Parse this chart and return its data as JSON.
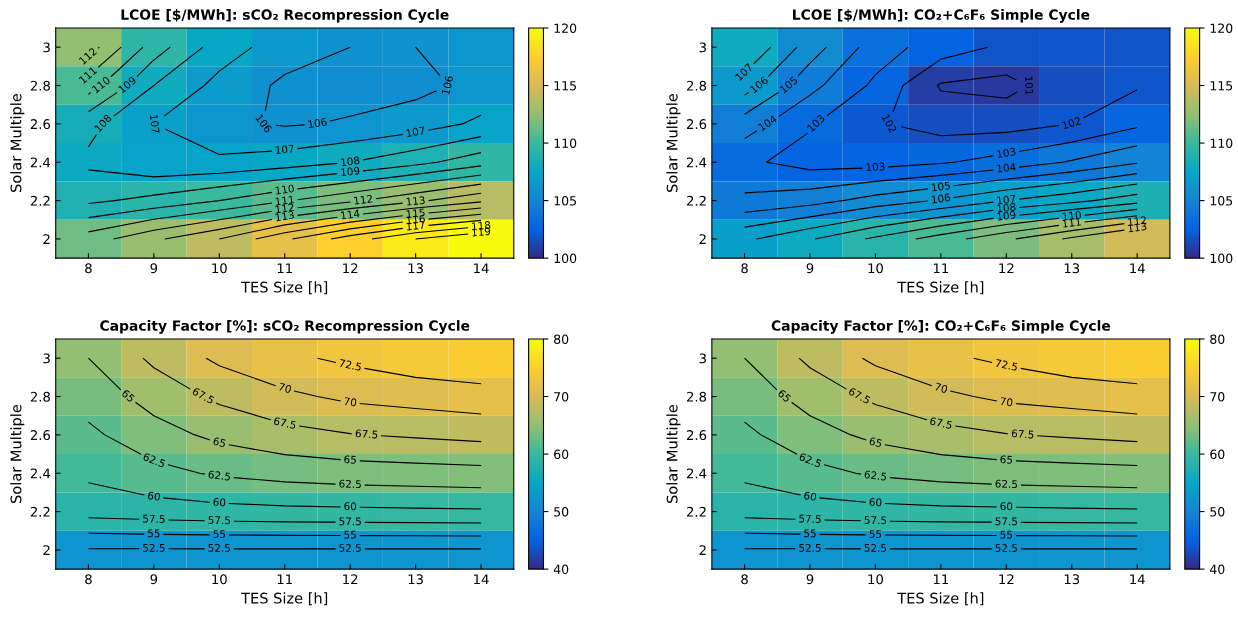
{
  "chart_data": [
    {
      "type": "heatmap",
      "title": "LCOE [$/MWh]: sCO₂ Recompression Cycle",
      "xlabel": "TES Size [h]",
      "ylabel": "Solar Multiple",
      "categories": [
        "8",
        "9",
        "10",
        "11",
        "12",
        "13",
        "14"
      ],
      "y_categories": [
        "3",
        "2.8",
        "2.6",
        "2.4",
        "2.2",
        "2"
      ],
      "clim": [
        100,
        120
      ],
      "cticks": [
        100,
        105,
        110,
        115,
        120
      ],
      "cells": [
        [
          112.5,
          109.5,
          107.5,
          106.5,
          106,
          106,
          106.2
        ],
        [
          110.5,
          108,
          106.7,
          105.8,
          105.6,
          105.7,
          106.3
        ],
        [
          108.3,
          107,
          106.2,
          105.9,
          106.1,
          106.5,
          107.2
        ],
        [
          107.8,
          107.2,
          107.2,
          107.5,
          108,
          108.7,
          109.6
        ],
        [
          108.8,
          109.3,
          110,
          110.9,
          111.8,
          112.8,
          113.8
        ],
        [
          111.5,
          112.8,
          114,
          115.8,
          117.5,
          119,
          120
        ]
      ],
      "annotations": [
        "112",
        "111",
        "110",
        "110",
        "109",
        "109",
        "108",
        "108",
        "107",
        "107",
        "107",
        "106",
        "106",
        "106",
        "111",
        "112",
        "112",
        "113",
        "113",
        "114",
        "115",
        "116",
        "117",
        "118",
        "119"
      ]
    },
    {
      "type": "heatmap",
      "title": "LCOE [$/MWh]: CO₂+C₆F₆ Simple Cycle",
      "xlabel": "TES Size [h]",
      "ylabel": "Solar Multiple",
      "categories": [
        "8",
        "9",
        "10",
        "11",
        "12",
        "13",
        "14"
      ],
      "y_categories": [
        "3",
        "2.8",
        "2.6",
        "2.4",
        "2.2",
        "2"
      ],
      "clim": [
        100,
        120
      ],
      "cticks": [
        100,
        105,
        110,
        115,
        120
      ],
      "cells": [
        [
          108,
          105.5,
          103.5,
          102.5,
          101.8,
          101.9,
          101.8
        ],
        [
          106.5,
          104.3,
          102.8,
          100.9,
          100.7,
          101.6,
          101.9
        ],
        [
          104.5,
          103.1,
          102.1,
          101.6,
          101.6,
          102,
          102.8
        ],
        [
          103.2,
          102.6,
          102.6,
          102.9,
          103.4,
          104.1,
          104.9
        ],
        [
          104.2,
          104.6,
          105.4,
          106.1,
          107,
          107.7,
          108.6
        ],
        [
          106.8,
          107.9,
          109.2,
          110.5,
          111.8,
          113.2,
          114.7
        ]
      ],
      "annotations": [
        "107",
        "106",
        "105",
        "104",
        "104",
        "103",
        "103",
        "103",
        "102",
        "102",
        "101",
        "105",
        "106",
        "107",
        "108",
        "109",
        "110",
        "111",
        "112",
        "113"
      ]
    },
    {
      "type": "heatmap",
      "title": "Capacity Factor [%]: sCO₂ Recompression Cycle",
      "xlabel": "TES Size [h]",
      "ylabel": "Solar Multiple",
      "categories": [
        "8",
        "9",
        "10",
        "11",
        "12",
        "13",
        "14"
      ],
      "y_categories": [
        "3",
        "2.8",
        "2.6",
        "2.4",
        "2.2",
        "2"
      ],
      "clim": [
        40,
        80
      ],
      "cticks": [
        40,
        50,
        60,
        70,
        80
      ],
      "cells": [
        [
          65,
          68,
          70.5,
          72,
          73,
          74,
          74.5
        ],
        [
          63.5,
          66,
          68,
          69.5,
          70.5,
          71,
          71.5
        ],
        [
          62,
          64,
          65.6,
          66.7,
          67.4,
          67.8,
          68.2
        ],
        [
          60.5,
          61.8,
          62.8,
          63.4,
          63.8,
          64,
          64.2
        ],
        [
          58.5,
          58.9,
          59.2,
          59.4,
          59.5,
          59.6,
          59.7
        ],
        [
          52.3,
          52.3,
          52.3,
          52.3,
          52.3,
          52.3,
          52.3
        ]
      ],
      "annotations": [
        "72.5",
        "70",
        "70",
        "67.5",
        "67.5",
        "67.5",
        "65",
        "65",
        "65",
        "62.5",
        "62.5",
        "62.5",
        "60",
        "60",
        "60",
        "57.5",
        "57.5",
        "57.5",
        "55",
        "55",
        "55",
        "52.5",
        "52.5",
        "52.5"
      ]
    },
    {
      "type": "heatmap",
      "title": "Capacity Factor [%]: CO₂+C₆F₆ Simple Cycle",
      "xlabel": "TES Size [h]",
      "ylabel": "Solar Multiple",
      "categories": [
        "8",
        "9",
        "10",
        "11",
        "12",
        "13",
        "14"
      ],
      "y_categories": [
        "3",
        "2.8",
        "2.6",
        "2.4",
        "2.2",
        "2"
      ],
      "clim": [
        40,
        80
      ],
      "cticks": [
        40,
        50,
        60,
        70,
        80
      ],
      "cells": [
        [
          65,
          68,
          70.5,
          72,
          73,
          74,
          74.5
        ],
        [
          63.5,
          66,
          68,
          69.5,
          70.5,
          71,
          71.5
        ],
        [
          62,
          64,
          65.6,
          66.7,
          67.4,
          67.8,
          68.2
        ],
        [
          60.5,
          61.8,
          62.8,
          63.4,
          63.8,
          64,
          64.2
        ],
        [
          58.5,
          58.9,
          59.2,
          59.4,
          59.5,
          59.6,
          59.7
        ],
        [
          52.3,
          52.3,
          52.3,
          52.3,
          52.3,
          52.3,
          52.3
        ]
      ],
      "annotations": [
        "72.5",
        "70",
        "70",
        "67.5",
        "67.5",
        "67.5",
        "65",
        "65",
        "65",
        "62.5",
        "62.5",
        "62.5",
        "60",
        "60",
        "60",
        "57.5",
        "57.5",
        "57.5",
        "55",
        "55",
        "55",
        "52.5",
        "52.5",
        "52.5"
      ]
    }
  ]
}
